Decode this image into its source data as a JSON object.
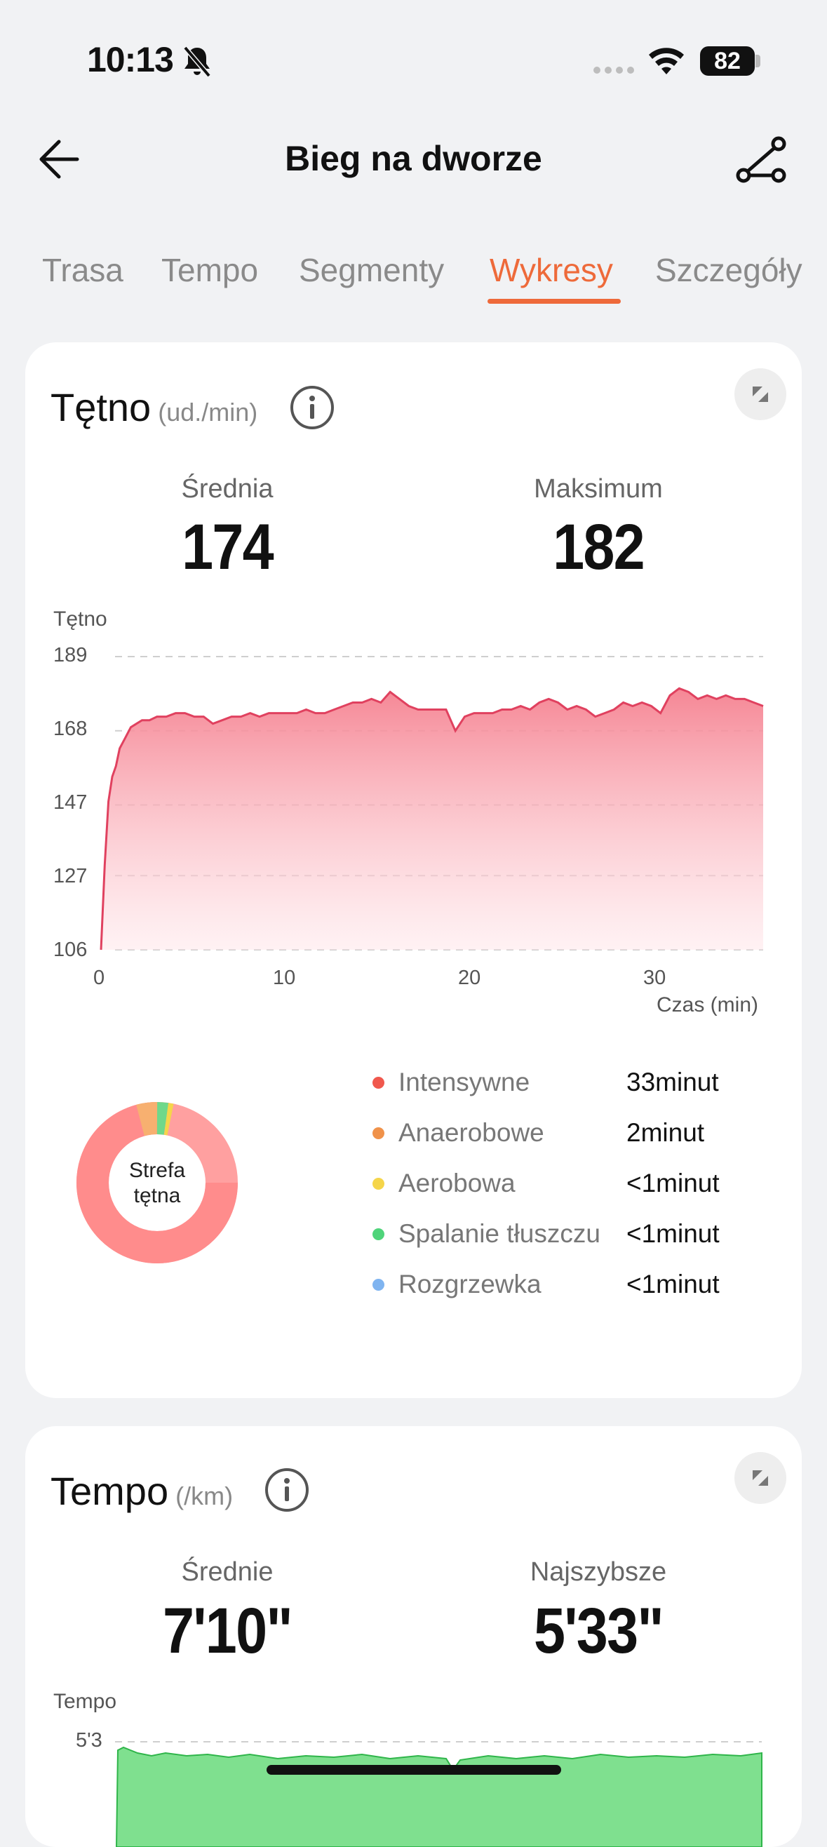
{
  "status_bar": {
    "time": "10:13",
    "battery": "82"
  },
  "header": {
    "title": "Bieg na dworze"
  },
  "tabs": [
    {
      "label": "Trasa",
      "active": false
    },
    {
      "label": "Tempo",
      "active": false
    },
    {
      "label": "Segmenty",
      "active": false
    },
    {
      "label": "Wykresy",
      "active": true
    },
    {
      "label": "Szczegóły",
      "active": false
    }
  ],
  "heart_rate": {
    "title": "Tętno",
    "unit": "(ud./min)",
    "avg_label": "Średnia",
    "avg_value": "174",
    "max_label": "Maksimum",
    "max_value": "182",
    "zone_center_line1": "Strefa",
    "zone_center_line2": "tętna",
    "zones": [
      {
        "name": "Intensywne",
        "value": "33minut",
        "color": "#f0584d"
      },
      {
        "name": "Anaerobowe",
        "value": "2minut",
        "color": "#f0924a"
      },
      {
        "name": "Aerobowa",
        "value": "<1minut",
        "color": "#f5d54a"
      },
      {
        "name": "Spalanie tłuszczu",
        "value": "<1minut",
        "color": "#4fd47a"
      },
      {
        "name": "Rozgrzewka",
        "value": "<1minut",
        "color": "#7fb4f0"
      }
    ]
  },
  "pace": {
    "title": "Tempo",
    "unit": "(/km)",
    "avg_label": "Średnie",
    "avg_value": "7'10\"",
    "best_label": "Najszybsze",
    "best_value": "5'33\"",
    "chart_ylabel": "Tempo",
    "chart_top_tick": "5'3"
  },
  "chart_data": {
    "type": "area",
    "title": "",
    "ylabel": "Tętno",
    "xlabel": "Czas (min)",
    "yticks": [
      "189",
      "168",
      "147",
      "127",
      "106"
    ],
    "xticks": [
      "0",
      "10",
      "20",
      "30"
    ],
    "ylim": [
      106,
      189
    ],
    "xlim": [
      0,
      35.5
    ],
    "grid": true,
    "color": "#e0415f",
    "x": [
      0,
      0.2,
      0.4,
      0.6,
      0.8,
      1.0,
      1.3,
      1.6,
      1.9,
      2.2,
      2.6,
      3.0,
      3.5,
      4.0,
      4.5,
      5.0,
      5.5,
      6.0,
      6.5,
      7.0,
      7.5,
      8.0,
      8.5,
      9.0,
      9.5,
      10.0,
      10.5,
      11.0,
      11.5,
      12.0,
      12.5,
      13.0,
      13.5,
      14.0,
      14.5,
      15.0,
      15.5,
      16.0,
      16.5,
      17.0,
      17.5,
      18.0,
      18.5,
      19.0,
      19.5,
      20.0,
      20.5,
      21.0,
      21.5,
      22.0,
      22.5,
      23.0,
      23.5,
      24.0,
      24.5,
      25.0,
      25.5,
      26.0,
      26.5,
      27.0,
      27.5,
      28.0,
      28.5,
      29.0,
      29.5,
      30.0,
      30.5,
      31.0,
      31.5,
      32.0,
      32.5,
      33.0,
      33.5,
      34.0,
      34.5,
      35.0,
      35.5
    ],
    "values": [
      106,
      130,
      148,
      155,
      158,
      163,
      166,
      169,
      170,
      171,
      171,
      172,
      172,
      173,
      173,
      172,
      172,
      170,
      171,
      172,
      172,
      173,
      172,
      173,
      173,
      173,
      173,
      174,
      173,
      173,
      174,
      175,
      176,
      176,
      177,
      176,
      179,
      177,
      175,
      174,
      174,
      174,
      174,
      168,
      172,
      173,
      173,
      173,
      174,
      174,
      175,
      174,
      176,
      177,
      176,
      174,
      175,
      174,
      172,
      173,
      174,
      176,
      175,
      176,
      175,
      173,
      178,
      180,
      179,
      177,
      178,
      177,
      178,
      177,
      177,
      176,
      175
    ]
  }
}
